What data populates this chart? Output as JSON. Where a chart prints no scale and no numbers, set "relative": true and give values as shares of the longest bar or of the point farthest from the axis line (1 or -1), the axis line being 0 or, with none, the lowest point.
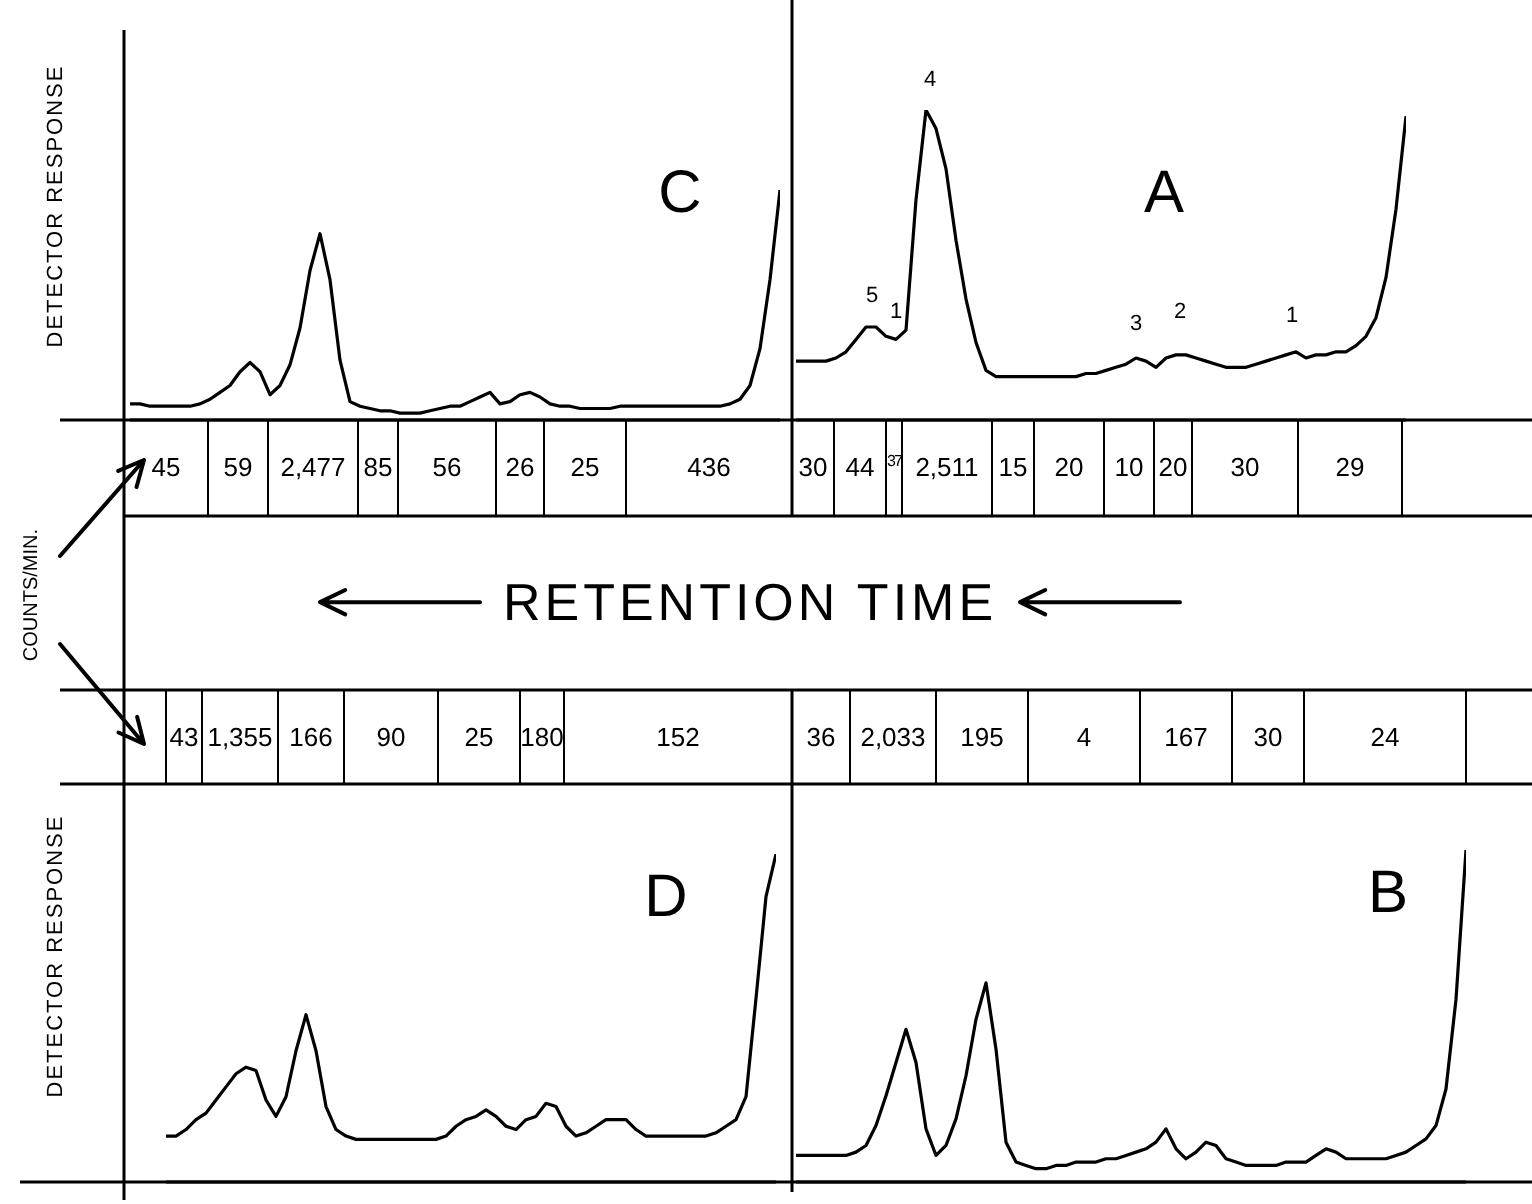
{
  "chart_data": [
    {
      "type": "line",
      "title": "C",
      "ylabel": "DETECTOR RESPONSE",
      "relative": true,
      "marker": "none",
      "color": "#000000",
      "categories": [
        null,
        null,
        null,
        null,
        null,
        null,
        null,
        null,
        null,
        null,
        null,
        null,
        null,
        null,
        null,
        null,
        null,
        null,
        null,
        null,
        null,
        null,
        null,
        null,
        null,
        null,
        null,
        null,
        null,
        null,
        null,
        null,
        null,
        null,
        null,
        null,
        null,
        null,
        null,
        null,
        null,
        null,
        null,
        null,
        null,
        null,
        null,
        null,
        null,
        null,
        null,
        null,
        null,
        null,
        null,
        null,
        null,
        null,
        null,
        null,
        null,
        null,
        null,
        null,
        null,
        null
      ],
      "values": [
        0.07,
        0.07,
        0.06,
        0.06,
        0.06,
        0.06,
        0.06,
        0.07,
        0.09,
        0.12,
        0.15,
        0.21,
        0.25,
        0.21,
        0.11,
        0.15,
        0.24,
        0.4,
        0.65,
        0.81,
        0.61,
        0.26,
        0.08,
        0.06,
        0.05,
        0.04,
        0.04,
        0.03,
        0.03,
        0.03,
        0.04,
        0.05,
        0.06,
        0.06,
        0.08,
        0.1,
        0.12,
        0.07,
        0.08,
        0.11,
        0.12,
        0.1,
        0.07,
        0.06,
        0.06,
        0.05,
        0.05,
        0.05,
        0.05,
        0.06,
        0.06,
        0.06,
        0.06,
        0.06,
        0.06,
        0.06,
        0.06,
        0.06,
        0.06,
        0.06,
        0.07,
        0.09,
        0.15,
        0.31,
        0.61,
        1
      ],
      "annotations": [
        "45",
        "59",
        "2,477",
        "85",
        "56",
        "26",
        "25",
        "436"
      ]
    },
    {
      "type": "line",
      "title": "A",
      "relative": true,
      "marker": "none",
      "color": "#000000",
      "categories": [
        null,
        null,
        null,
        null,
        null,
        null,
        null,
        null,
        null,
        null,
        null,
        null,
        null,
        null,
        null,
        null,
        null,
        null,
        null,
        null,
        null,
        null,
        null,
        null,
        null,
        null,
        null,
        null,
        null,
        null,
        null,
        null,
        null,
        null,
        null,
        null,
        null,
        null,
        null,
        null,
        null,
        null,
        null,
        null,
        null,
        null,
        null,
        null,
        null,
        null,
        null,
        null,
        null,
        null,
        null,
        null,
        null,
        null,
        null,
        null,
        null,
        null
      ],
      "values": [
        0.19,
        0.19,
        0.19,
        0.19,
        0.2,
        0.22,
        0.26,
        0.3,
        0.3,
        0.27,
        0.26,
        0.29,
        0.71,
        1,
        0.94,
        0.81,
        0.58,
        0.39,
        0.25,
        0.16,
        0.14,
        0.14,
        0.14,
        0.14,
        0.14,
        0.14,
        0.14,
        0.14,
        0.14,
        0.15,
        0.15,
        0.16,
        0.17,
        0.18,
        0.2,
        0.19,
        0.17,
        0.2,
        0.21,
        0.21,
        0.2,
        0.19,
        0.18,
        0.17,
        0.17,
        0.17,
        0.18,
        0.19,
        0.2,
        0.21,
        0.22,
        0.2,
        0.21,
        0.21,
        0.22,
        0.22,
        0.24,
        0.27,
        0.33,
        0.46,
        0.68,
        0.98
      ],
      "annotations": [
        "30",
        "44",
        "37",
        "2,511",
        "15",
        "20",
        "10",
        "20",
        "30",
        "29",
        "5",
        "1",
        "4",
        "3",
        "2",
        "1"
      ]
    },
    {
      "type": "line",
      "title": "D",
      "ylabel": "DETECTOR RESPONSE",
      "relative": true,
      "marker": "none",
      "color": "#000000",
      "categories": [
        null,
        null,
        null,
        null,
        null,
        null,
        null,
        null,
        null,
        null,
        null,
        null,
        null,
        null,
        null,
        null,
        null,
        null,
        null,
        null,
        null,
        null,
        null,
        null,
        null,
        null,
        null,
        null,
        null,
        null,
        null,
        null,
        null,
        null,
        null,
        null,
        null,
        null,
        null,
        null,
        null,
        null,
        null,
        null,
        null,
        null,
        null,
        null,
        null,
        null,
        null,
        null,
        null,
        null,
        null,
        null,
        null,
        null,
        null,
        null,
        null,
        null
      ],
      "values": [
        0.14,
        0.14,
        0.16,
        0.19,
        0.21,
        0.25,
        0.29,
        0.33,
        0.35,
        0.34,
        0.25,
        0.2,
        0.26,
        0.4,
        0.51,
        0.4,
        0.23,
        0.16,
        0.14,
        0.13,
        0.13,
        0.13,
        0.13,
        0.13,
        0.13,
        0.13,
        0.13,
        0.13,
        0.14,
        0.17,
        0.19,
        0.2,
        0.22,
        0.2,
        0.17,
        0.16,
        0.19,
        0.2,
        0.24,
        0.23,
        0.17,
        0.14,
        0.15,
        0.17,
        0.19,
        0.19,
        0.19,
        0.16,
        0.14,
        0.14,
        0.14,
        0.14,
        0.14,
        0.14,
        0.14,
        0.15,
        0.17,
        0.19,
        0.26,
        0.56,
        0.87,
        1
      ],
      "annotations": [
        "43",
        "1,355",
        "166",
        "90",
        "25",
        "180",
        "152"
      ]
    },
    {
      "type": "line",
      "title": "B",
      "relative": true,
      "marker": "none",
      "color": "#000000",
      "categories": [
        null,
        null,
        null,
        null,
        null,
        null,
        null,
        null,
        null,
        null,
        null,
        null,
        null,
        null,
        null,
        null,
        null,
        null,
        null,
        null,
        null,
        null,
        null,
        null,
        null,
        null,
        null,
        null,
        null,
        null,
        null,
        null,
        null,
        null,
        null,
        null,
        null,
        null,
        null,
        null,
        null,
        null,
        null,
        null,
        null,
        null,
        null,
        null,
        null,
        null,
        null,
        null,
        null,
        null,
        null,
        null,
        null,
        null,
        null,
        null,
        null,
        null,
        null,
        null,
        null,
        null,
        null,
        null
      ],
      "values": [
        0.08,
        0.08,
        0.08,
        0.08,
        0.08,
        0.08,
        0.09,
        0.11,
        0.17,
        0.26,
        0.36,
        0.46,
        0.36,
        0.16,
        0.08,
        0.11,
        0.19,
        0.32,
        0.49,
        0.6,
        0.4,
        0.12,
        0.06,
        0.05,
        0.04,
        0.04,
        0.05,
        0.05,
        0.06,
        0.06,
        0.06,
        0.07,
        0.07,
        0.08,
        0.09,
        0.1,
        0.12,
        0.16,
        0.1,
        0.07,
        0.09,
        0.12,
        0.11,
        0.07,
        0.06,
        0.05,
        0.05,
        0.05,
        0.05,
        0.06,
        0.06,
        0.06,
        0.08,
        0.1,
        0.09,
        0.07,
        0.07,
        0.07,
        0.07,
        0.07,
        0.08,
        0.09,
        0.11,
        0.13,
        0.17,
        0.28,
        0.55,
        1
      ],
      "annotations": [
        "36",
        "2,033",
        "195",
        "4",
        "167",
        "30",
        "24"
      ]
    },
    {
      "type": "other",
      "annotations": [
        "RETENTION TIME",
        "COUNTS/MIN."
      ]
    }
  ]
}
